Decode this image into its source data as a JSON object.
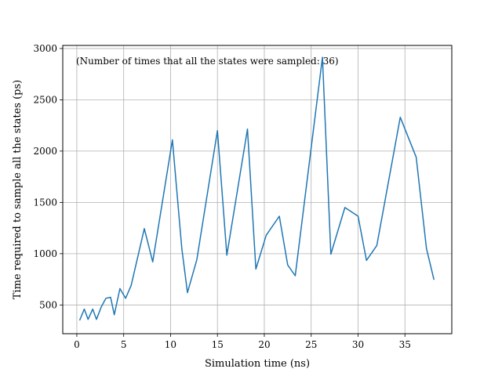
{
  "chart_data": {
    "type": "line",
    "xlabel": "Simulation time (ns)",
    "ylabel": "Time required to sample all the states (ps)",
    "annotation": "(Number of times that all the states were sampled: 36)",
    "xlim": [
      -1.5,
      40
    ],
    "ylim": [
      220,
      3030
    ],
    "xticks": [
      0,
      5,
      10,
      15,
      20,
      25,
      30,
      35
    ],
    "yticks": [
      500,
      1000,
      1500,
      2000,
      2500,
      3000
    ],
    "grid": true,
    "line_color": "#1f77b4",
    "series": [
      {
        "x": [
          0.3,
          0.8,
          1.2,
          1.7,
          2.1,
          2.6,
          3.1,
          3.6,
          4.0,
          4.6,
          5.2,
          5.8,
          7.2,
          8.1,
          10.2,
          11.2,
          11.8,
          12.8,
          15.0,
          16.0,
          18.2,
          19.1,
          20.2,
          21.6,
          22.5,
          23.3,
          26.2,
          27.1,
          28.6,
          30.0,
          30.9,
          32.0,
          34.5,
          36.2,
          37.3,
          38.1
        ],
        "y": [
          350,
          460,
          360,
          460,
          360,
          480,
          565,
          575,
          405,
          660,
          565,
          690,
          1245,
          920,
          2110,
          1050,
          620,
          940,
          2200,
          985,
          2215,
          850,
          1180,
          1365,
          890,
          785,
          2915,
          995,
          1450,
          1365,
          935,
          1080,
          2330,
          1940,
          1050,
          745
        ]
      }
    ]
  }
}
